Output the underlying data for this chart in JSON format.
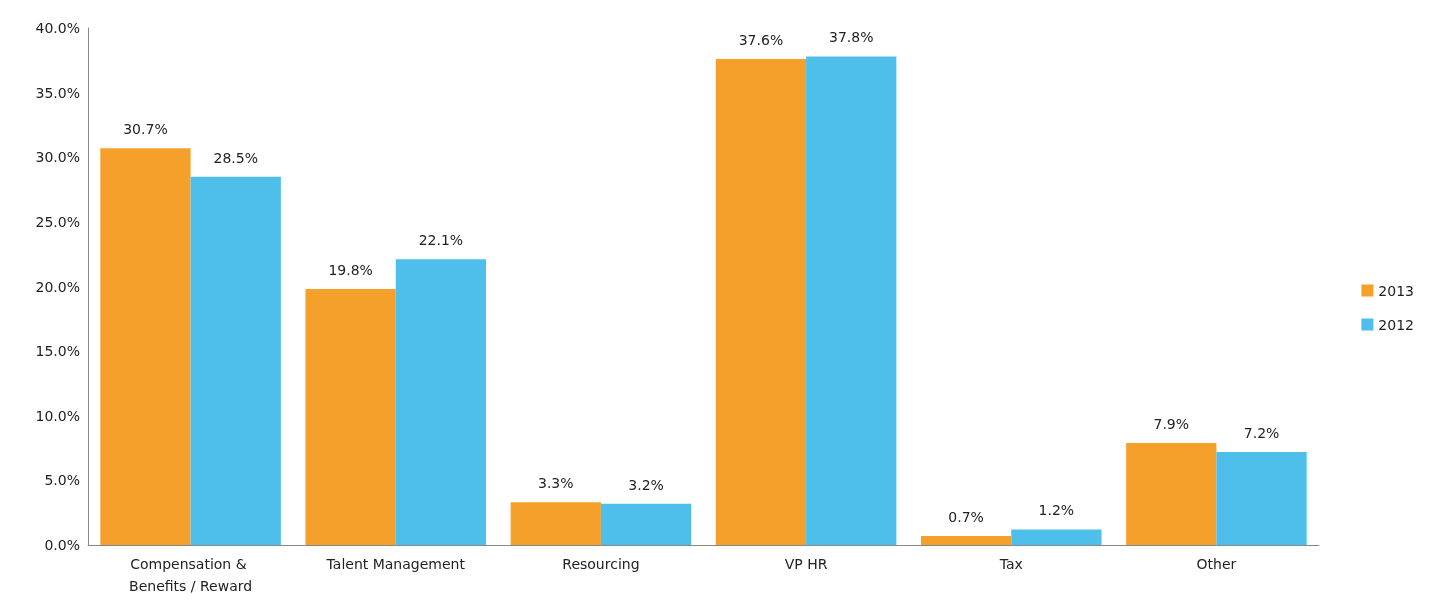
{
  "chart_data": {
    "type": "bar",
    "categories": [
      "Compensation & Benefits / Reward",
      "Talent Management",
      "Resourcing",
      "VP HR",
      "Tax",
      "Other"
    ],
    "series": [
      {
        "name": "2013",
        "color": "#f5a02a",
        "values": [
          30.7,
          19.8,
          3.3,
          37.6,
          0.7,
          7.9
        ],
        "value_labels": [
          "30.7%",
          "19.8%",
          "3.3%",
          "37.6%",
          "0.7%",
          "7.9%"
        ]
      },
      {
        "name": "2012",
        "color": "#4dbfea",
        "values": [
          28.5,
          22.1,
          3.2,
          37.8,
          1.2,
          7.2
        ],
        "value_labels": [
          "28.5%",
          "22.1%",
          "3.2%",
          "37.8%",
          "1.2%",
          "7.2%"
        ]
      }
    ],
    "ylim": [
      0,
      40
    ],
    "yticks": [
      {
        "value": 0,
        "label": "0.0%"
      },
      {
        "value": 5,
        "label": "5.0%"
      },
      {
        "value": 10,
        "label": "10.0%"
      },
      {
        "value": 15,
        "label": "15.0%"
      },
      {
        "value": 20,
        "label": "20.0%"
      },
      {
        "value": 25,
        "label": "25.0%"
      },
      {
        "value": 30,
        "label": "30.0%"
      },
      {
        "value": 35,
        "label": "35.0%"
      },
      {
        "value": 40,
        "label": "40.0%"
      }
    ],
    "grid": false,
    "legend": "right"
  }
}
